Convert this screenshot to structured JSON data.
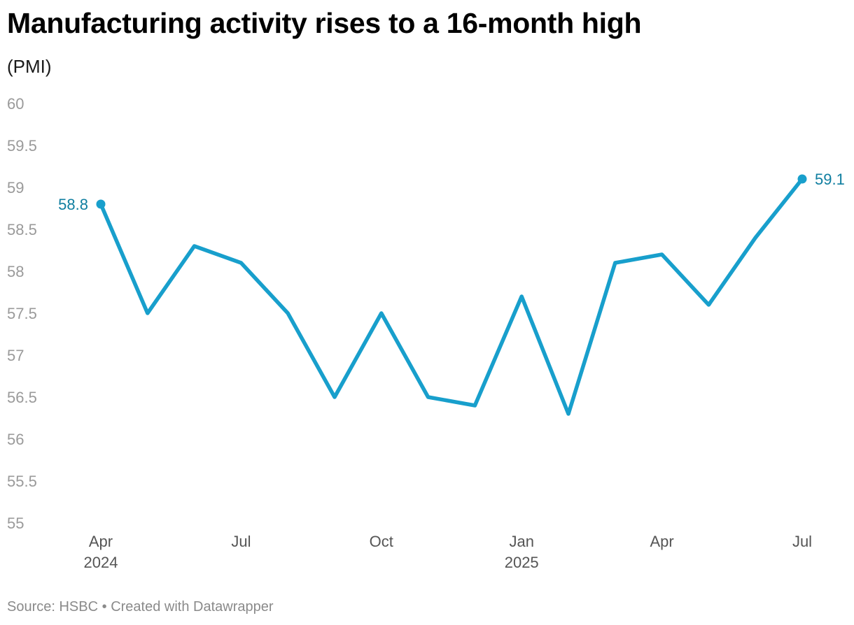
{
  "title": "Manufacturing activity rises to a 16-month high",
  "subtitle": "(PMI)",
  "footer": {
    "source": "Source: HSBC",
    "separator": " • ",
    "credit": "Created with Datawrapper"
  },
  "colors": {
    "line": "#189fcc",
    "label": "#0f7ea0",
    "tick": "#9a9a9a"
  },
  "chart_data": {
    "type": "line",
    "x": [
      "2024-04",
      "2024-05",
      "2024-06",
      "2024-07",
      "2024-08",
      "2024-09",
      "2024-10",
      "2024-11",
      "2024-12",
      "2025-01",
      "2025-02",
      "2025-03",
      "2025-04",
      "2025-05",
      "2025-06",
      "2025-07"
    ],
    "series": [
      {
        "values": [
          58.8,
          57.5,
          58.3,
          58.1,
          57.5,
          56.5,
          57.5,
          56.5,
          56.4,
          57.7,
          56.3,
          58.1,
          58.2,
          57.6,
          58.4,
          59.1
        ]
      }
    ],
    "ylim": [
      55,
      60
    ],
    "yticks": [
      "60",
      "59.5",
      "59",
      "58.5",
      "58",
      "57.5",
      "57",
      "56.5",
      "56",
      "55.5",
      "55"
    ],
    "xticks": [
      {
        "label": "Apr",
        "year": "2024",
        "x": "2024-04"
      },
      {
        "label": "Jul",
        "year": "",
        "x": "2024-07"
      },
      {
        "label": "Oct",
        "year": "",
        "x": "2024-10"
      },
      {
        "label": "Jan",
        "year": "2025",
        "x": "2025-01"
      },
      {
        "label": "Apr",
        "year": "",
        "x": "2025-04"
      },
      {
        "label": "Jul",
        "year": "",
        "x": "2025-07"
      }
    ],
    "annotations": [
      {
        "x": "2024-04",
        "text": "58.8"
      },
      {
        "x": "2025-07",
        "text": "59.1"
      }
    ],
    "grid": false,
    "legend": "none"
  }
}
